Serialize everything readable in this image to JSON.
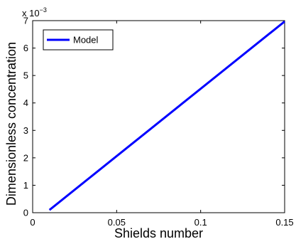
{
  "chart_data": {
    "type": "line",
    "xlabel": "Shields number",
    "ylabel": "Dimensionless concentration",
    "xlim": [
      0,
      0.15
    ],
    "ylim": [
      0,
      7
    ],
    "x_ticks": [
      0,
      0.05,
      0.1,
      0.15
    ],
    "x_tick_labels": [
      "0",
      "0.05",
      "0.1",
      "0.15"
    ],
    "y_ticks": [
      0,
      1,
      2,
      3,
      4,
      5,
      6,
      7
    ],
    "y_tick_labels": [
      "0",
      "1",
      "2",
      "3",
      "4",
      "5",
      "6",
      "7"
    ],
    "y_multiplier": {
      "base": "x 10",
      "exponent": "−3"
    },
    "grid": false,
    "legend_position": "top-left",
    "series": [
      {
        "name": "Model",
        "color": "#0000ff",
        "x": [
          0.01,
          0.15
        ],
        "y": [
          0.1,
          6.97
        ]
      }
    ]
  }
}
